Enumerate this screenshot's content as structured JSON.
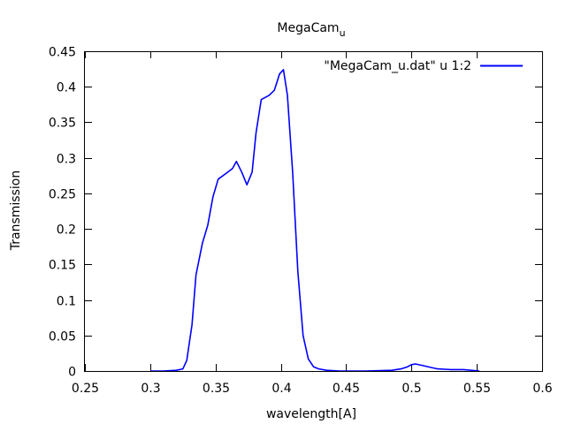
{
  "chart_data": {
    "type": "line",
    "title": "MegaCam",
    "title_subscript": "u",
    "xlabel": "wavelength[A]",
    "ylabel": "Transmission",
    "xlim": [
      0.25,
      0.6
    ],
    "ylim": [
      0,
      0.45
    ],
    "xticks": [
      "0.25",
      "0.3",
      "0.35",
      "0.4",
      "0.45",
      "0.5",
      "0.55",
      "0.6"
    ],
    "yticks": [
      "0",
      "0.05",
      "0.1",
      "0.15",
      "0.2",
      "0.25",
      "0.3",
      "0.35",
      "0.4",
      "0.45"
    ],
    "grid": false,
    "legend_position": "top-right",
    "series": [
      {
        "name": "\"MegaCam_u.dat\" u 1:2",
        "color": "#0000ff",
        "x": [
          0.3,
          0.31,
          0.32,
          0.325,
          0.328,
          0.332,
          0.335,
          0.34,
          0.344,
          0.348,
          0.352,
          0.358,
          0.363,
          0.366,
          0.37,
          0.374,
          0.378,
          0.381,
          0.385,
          0.391,
          0.395,
          0.399,
          0.402,
          0.405,
          0.409,
          0.413,
          0.417,
          0.421,
          0.425,
          0.429,
          0.435,
          0.445,
          0.465,
          0.485,
          0.492,
          0.497,
          0.5,
          0.503,
          0.508,
          0.515,
          0.52,
          0.53,
          0.54,
          0.552
        ],
        "y": [
          0.0,
          0.0,
          0.001,
          0.003,
          0.015,
          0.065,
          0.135,
          0.18,
          0.205,
          0.245,
          0.27,
          0.278,
          0.285,
          0.295,
          0.28,
          0.262,
          0.28,
          0.335,
          0.382,
          0.388,
          0.395,
          0.418,
          0.424,
          0.388,
          0.28,
          0.14,
          0.05,
          0.017,
          0.006,
          0.003,
          0.001,
          0.0,
          0.0,
          0.001,
          0.003,
          0.006,
          0.009,
          0.01,
          0.008,
          0.005,
          0.003,
          0.002,
          0.002,
          0.0
        ]
      }
    ]
  }
}
